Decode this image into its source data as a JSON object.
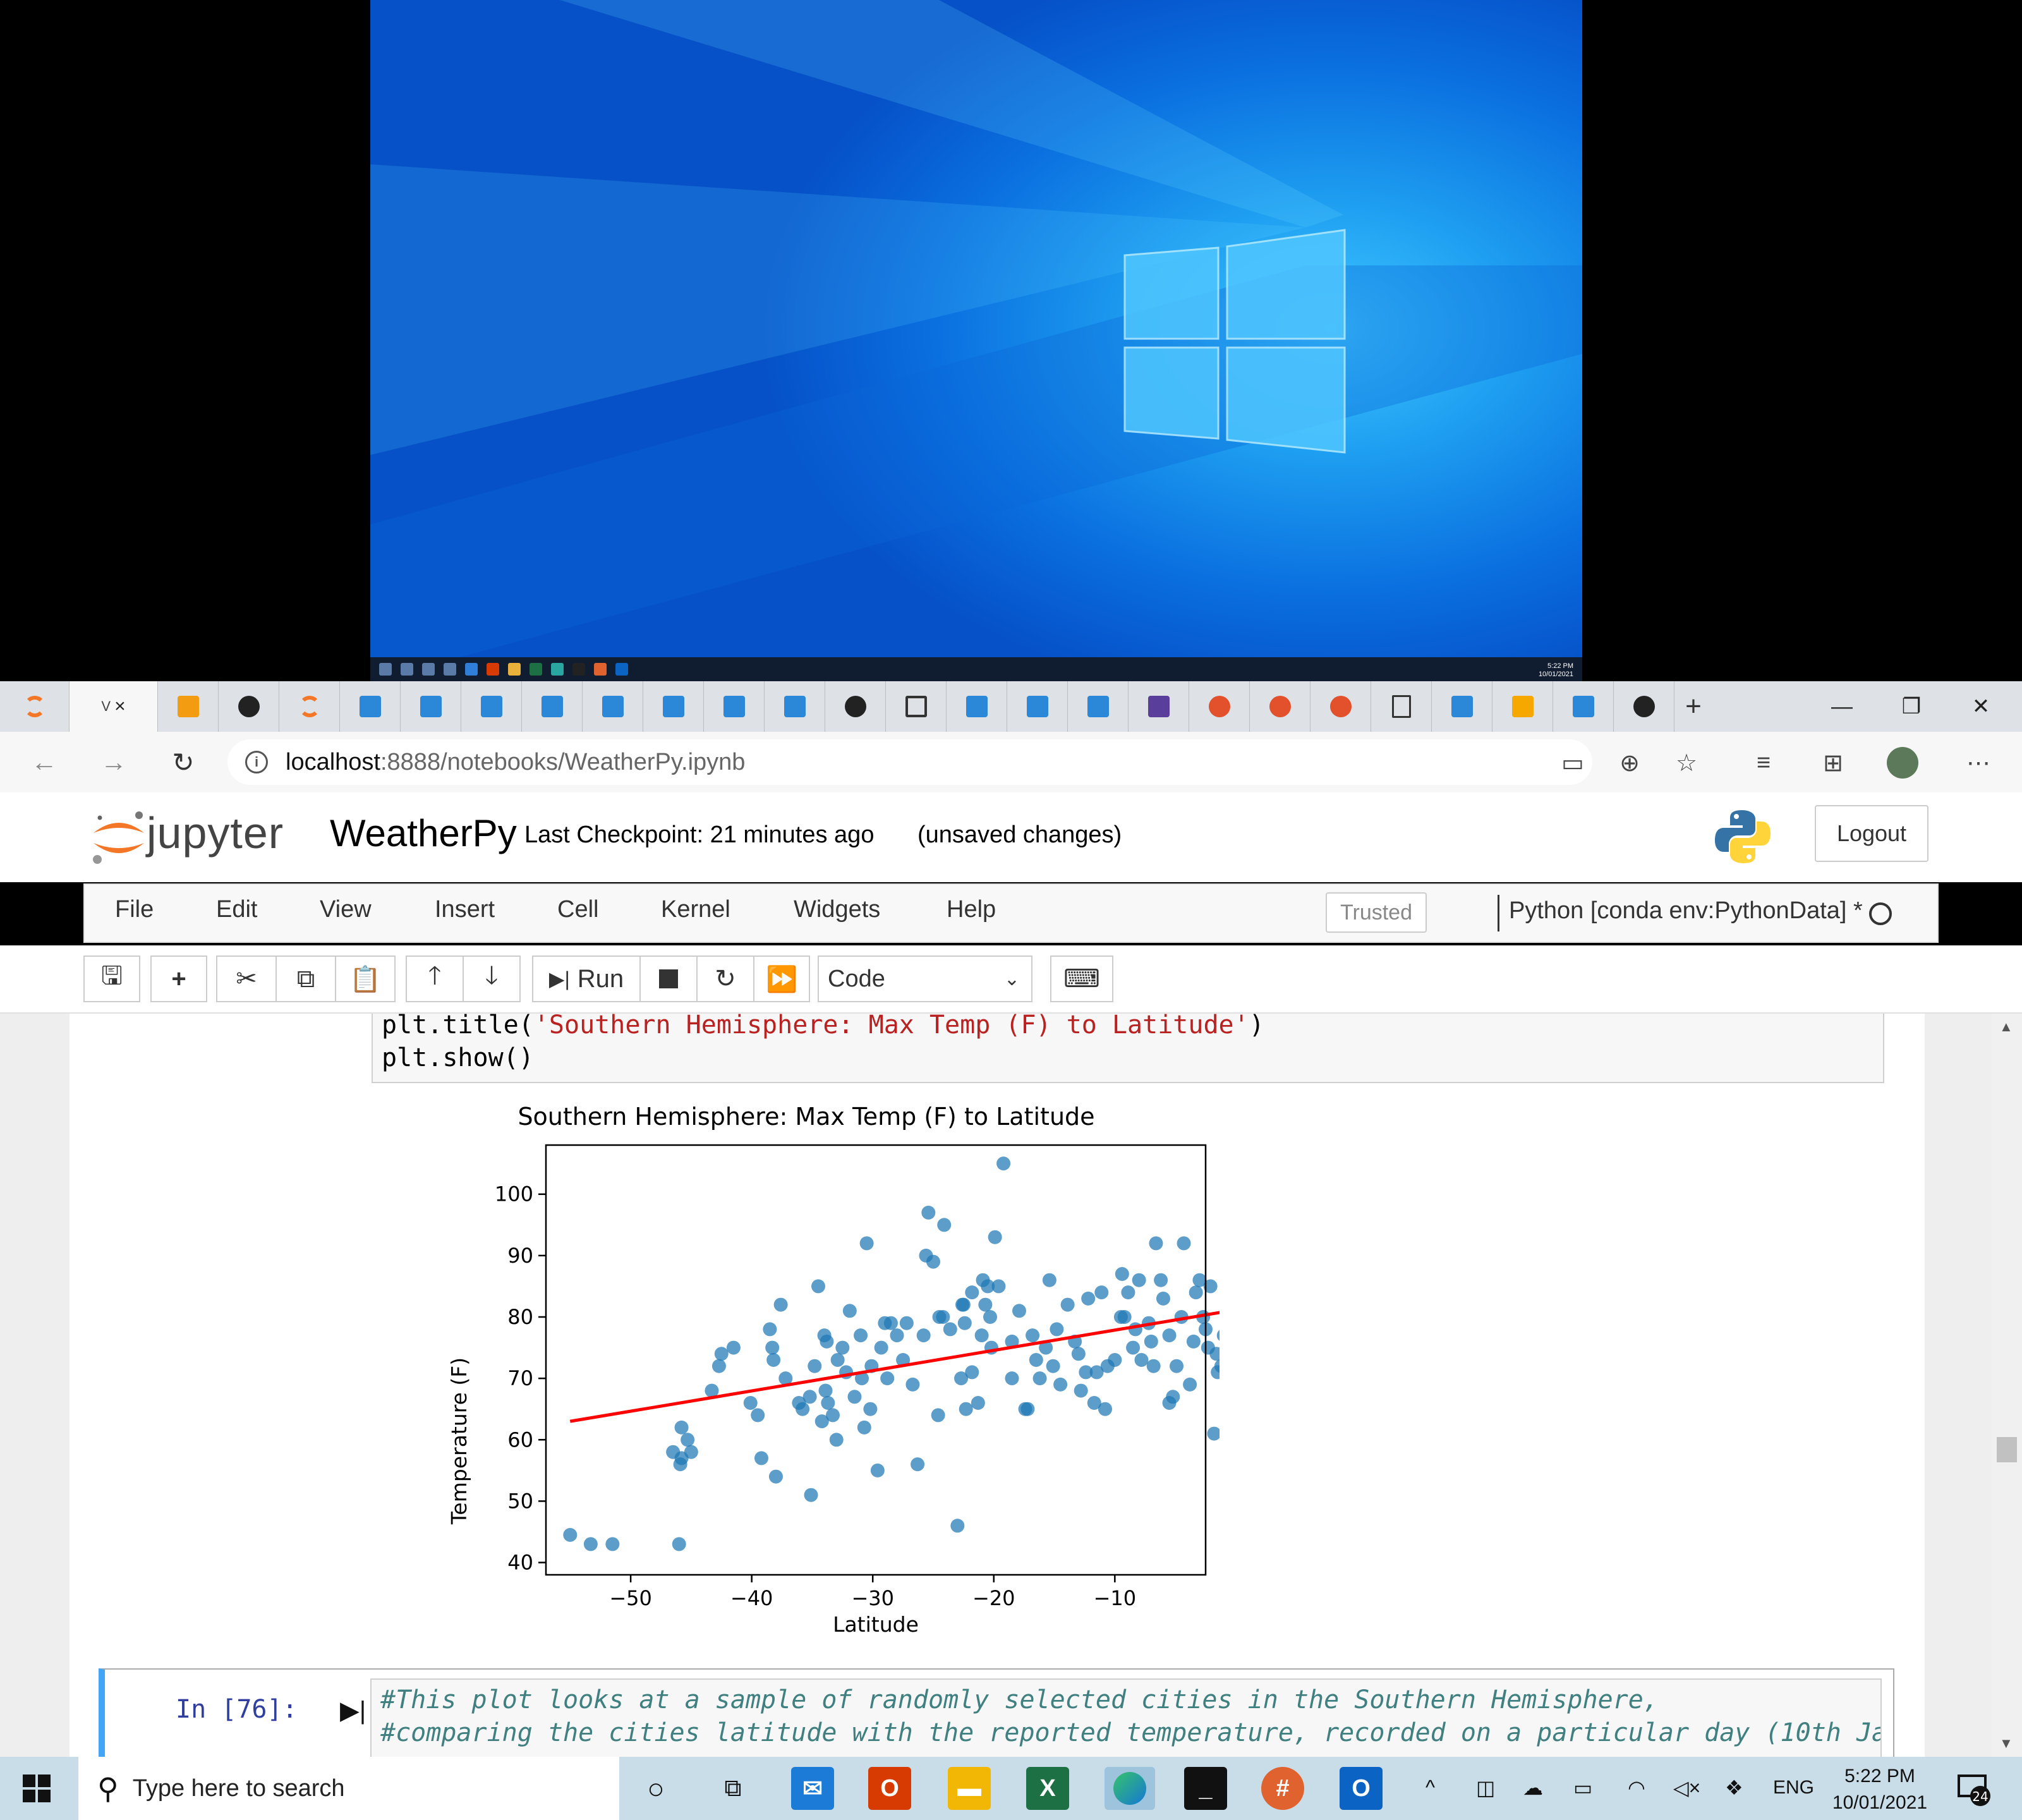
{
  "desktop": {
    "clock_time": "5:22 PM",
    "clock_date": "10/01/2021"
  },
  "browser": {
    "active_tab_label": "V",
    "new_tab_label": "+",
    "url_host": "localhost",
    "url_path": ":8888/notebooks/WeatherPy.ipynb",
    "icons": [
      "read-aloud-icon",
      "zoom-icon",
      "favorite-star-icon",
      "favorites-icon",
      "collections-icon",
      "profile-avatar-icon",
      "more-icon"
    ]
  },
  "jupyter": {
    "wordmark": "jupyter",
    "notebook_name": "WeatherPy",
    "checkpoint": "Last Checkpoint: 21 minutes ago",
    "unsaved": "(unsaved changes)",
    "logout": "Logout",
    "menu": [
      "File",
      "Edit",
      "View",
      "Insert",
      "Cell",
      "Kernel",
      "Widgets",
      "Help"
    ],
    "trusted": "Trusted",
    "kernel": "Python [conda env:PythonData] *",
    "toolbar": {
      "run_label": "Run",
      "cell_type": "Code"
    }
  },
  "cells": {
    "prev_code_line1_prefix": "plt.title(",
    "prev_code_line1_string": "'Southern Hemisphere: Max Temp (F) to Latitude'",
    "prev_code_line1_suffix": ")",
    "prev_code_line2": "plt.show()",
    "cell76_prompt": "In [76]:",
    "cell76_line1": "#This plot looks at a sample of randomly selected cities in the Southern Hemisphere,",
    "cell76_line2": "#comparing the cities latitude with the reported temperature, recorded on a particular day (10th Ja"
  },
  "chart_data": {
    "type": "scatter",
    "title": "Southern Hemisphere: Max Temp (F) to Latitude",
    "xlabel": "Latitude",
    "ylabel": "Temperature (F)",
    "xlim": [
      -57,
      -2.5
    ],
    "ylim": [
      38,
      108
    ],
    "xticks": [
      -50,
      -40,
      -30,
      -20,
      -10,
      0
    ],
    "yticks": [
      40,
      50,
      60,
      70,
      80,
      90,
      100
    ],
    "grid": false,
    "point_color": "#1f77b4",
    "line_color": "#ff0000",
    "regression_line": {
      "x": [
        -55,
        -0.5
      ],
      "y": [
        63,
        81
      ]
    },
    "series": [
      {
        "x": [
          -55,
          -53.3,
          -51.5,
          -46,
          -46.5,
          -45.8,
          -45.3,
          -45.8,
          -45.9,
          -45,
          -43.3,
          -42.7,
          -42.5,
          -41.5,
          -40.1,
          -39.2,
          -38.5,
          -38.3,
          -38.2,
          -38,
          -37.6,
          -35.1,
          -35.2,
          -34.5,
          -34.2,
          -33.9,
          -34,
          -33.7,
          -33.3,
          -33,
          -32.5,
          -31.9,
          -31,
          -30.9,
          -30.7,
          -30.5,
          -30.2,
          -29.6,
          -29.3,
          -28.8,
          -28.5,
          -28,
          -27.2,
          -26.7,
          -26.3,
          -25.4,
          -25,
          -24.6,
          -24.1,
          -23.6,
          -23,
          -22.7,
          -22.6,
          -22.3,
          -21.8,
          -21.3,
          -20.9,
          -20.7,
          -20.2,
          -19.9,
          -19.2,
          -18.5,
          -17.9,
          -17.4,
          -16.8,
          -16.2,
          -15.7,
          -15.1,
          -14.5,
          -13.9,
          -13.3,
          -12.8,
          -12.2,
          -11.7,
          -11.1,
          -10.6,
          -10,
          -9.4,
          -8.9,
          -8.3,
          -7.8,
          -7.2,
          -6.6,
          -6,
          -5.5,
          -4.9,
          -4.3,
          -3.8,
          -3.3,
          -2.7,
          -2.1,
          -1.6,
          -1.2,
          -1,
          -0.7,
          -0.4,
          -0.2,
          -0.1,
          -1.8,
          -2.5,
          -3.5,
          -4.5,
          -5.5,
          -6.2,
          -7,
          -8.5,
          -9.5,
          -11.5,
          -13,
          -14.8,
          -16.5,
          -18.5,
          -20.3,
          -21,
          -22.5,
          -24.2,
          -25.6,
          -27.5,
          -29,
          -31.5,
          -32.2,
          -33.8,
          -36.1,
          -37.2,
          -39.5,
          -20.5,
          -21.8,
          -22.4,
          -24.5,
          -35.8,
          -34.8,
          -19.6,
          -10.8,
          -12.4,
          -15.4,
          -5.2,
          -3,
          -1.5,
          -2.3,
          -6.8,
          -8,
          -9.2,
          -25.8,
          -30.1,
          -32.9,
          -17.2
        ],
        "y": [
          44.5,
          43,
          43,
          43,
          58,
          62,
          60,
          57,
          56,
          58,
          68,
          72,
          74,
          75,
          66,
          57,
          78,
          75,
          73,
          54,
          82,
          51,
          67,
          85,
          63,
          68,
          77,
          66,
          64,
          60,
          75,
          81,
          77,
          70,
          62,
          92,
          65,
          55,
          75,
          70,
          79,
          77,
          79,
          69,
          56,
          97,
          89,
          64,
          95,
          78,
          46,
          70,
          82,
          65,
          71,
          66,
          86,
          82,
          75,
          93,
          105,
          70,
          81,
          65,
          77,
          70,
          75,
          72,
          69,
          82,
          76,
          68,
          83,
          66,
          84,
          72,
          73,
          87,
          84,
          78,
          73,
          79,
          92,
          83,
          66,
          72,
          92,
          69,
          84,
          80,
          85,
          74,
          72,
          77,
          80,
          82,
          80,
          74,
          61,
          78,
          76,
          80,
          77,
          86,
          76,
          75,
          80,
          71,
          74,
          78,
          73,
          76,
          80,
          77,
          82,
          80,
          90,
          73,
          79,
          67,
          71,
          76,
          66,
          70,
          64,
          85,
          84,
          79,
          80,
          65,
          72,
          85,
          65,
          71,
          86,
          67,
          86,
          71,
          75,
          72,
          86,
          80,
          77,
          72,
          73,
          65
        ]
      }
    ]
  },
  "taskbar": {
    "search_placeholder": "Type here to search",
    "lang": "ENG",
    "time": "5:22 PM",
    "date": "10/01/2021",
    "notifications": "24",
    "apps": [
      "cortana-icon",
      "task-view-icon",
      "mail-icon",
      "office-icon",
      "file-explorer-icon",
      "excel-icon",
      "edge-icon",
      "terminal-icon",
      "slack-icon",
      "outlook-icon"
    ]
  }
}
